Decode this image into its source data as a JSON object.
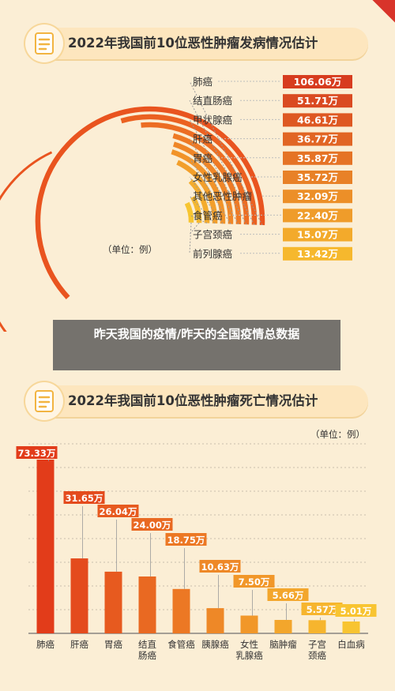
{
  "top_banner": {
    "title": "2022年我国前10位恶性肿瘤发病情况估计"
  },
  "bottom_banner": {
    "title": "2022年我国前10位恶性肿瘤死亡情况估计"
  },
  "overlay": {
    "caption": "昨天我国的疫情/昨天的全国疫情总数据"
  },
  "colors": {
    "background": "#fbeed5",
    "ring_outer": "#e9541f",
    "ring_inner": "#f7c531",
    "bar_top": "#e23c1a",
    "bar_bottom": "#f8c431",
    "label_dark": "#d73c1f",
    "label_light": "#f6b82d"
  },
  "chart_data": [
    {
      "type": "radial_bar",
      "title": "2022年我国前10位恶性肿瘤发病情况估计",
      "unit_note": "（单位：例）",
      "categories": [
        "肺癌",
        "结直肠癌",
        "甲状腺癌",
        "肝癌",
        "胃癌",
        "女性乳腺癌",
        "其他恶性肿瘤",
        "食管癌",
        "子宫颈癌",
        "前列腺癌"
      ],
      "values": [
        106.06,
        51.71,
        46.61,
        36.77,
        35.87,
        35.72,
        32.09,
        22.4,
        15.07,
        13.42
      ],
      "value_labels": [
        "106.06万",
        "51.71万",
        "46.61万",
        "36.77万",
        "35.87万",
        "35.72万",
        "32.09万",
        "22.40万",
        "15.07万",
        "13.42万"
      ],
      "value_unit": "万"
    },
    {
      "type": "bar",
      "title": "2022年我国前10位恶性肿瘤死亡情况估计",
      "unit_note": "（单位：例）",
      "categories": [
        "肺癌",
        "肝癌",
        "胃癌",
        "结直\n肠癌",
        "食管癌",
        "胰腺癌",
        "女性\n乳腺癌",
        "脑肿瘤",
        "子宫\n颈癌",
        "白血病"
      ],
      "values": [
        73.33,
        31.65,
        26.04,
        24.0,
        18.75,
        10.63,
        7.5,
        5.66,
        5.57,
        5.01
      ],
      "value_labels": [
        "73.33万",
        "31.65万",
        "26.04万",
        "24.00万",
        "18.75万",
        "10.63万",
        "7.50万",
        "5.66万",
        "5.57万",
        "5.01万"
      ],
      "value_unit": "万",
      "ylim": [
        0,
        80
      ],
      "grid": true
    }
  ]
}
